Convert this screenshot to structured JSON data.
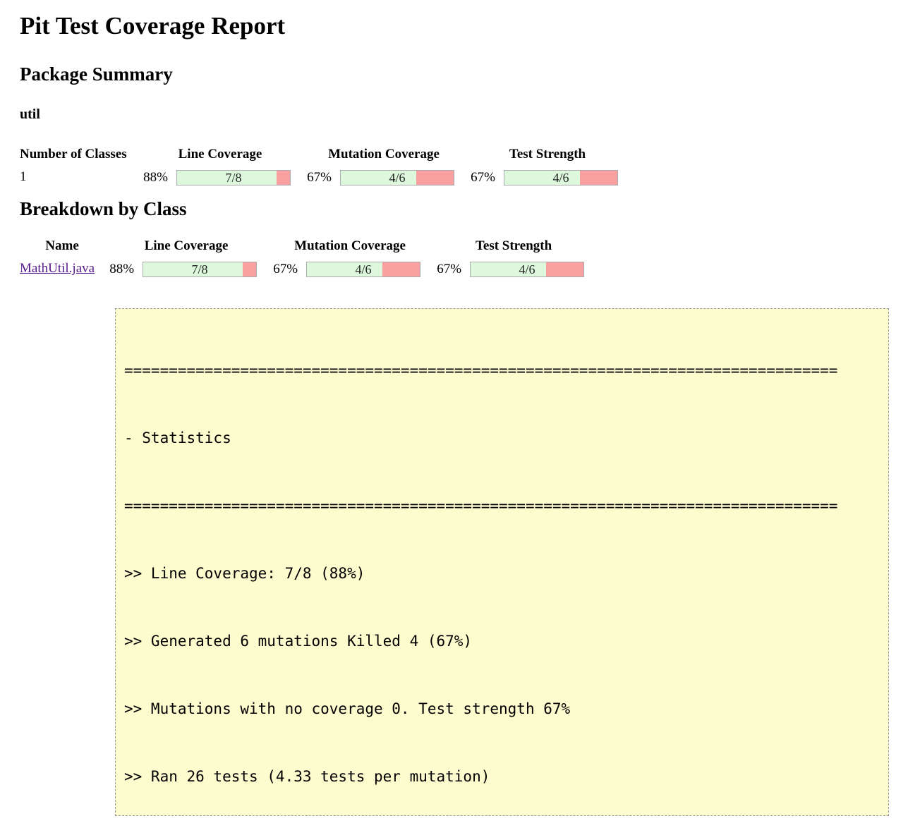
{
  "page": {
    "title": "Pit Test Coverage Report",
    "sections": {
      "package_summary": "Package Summary",
      "breakdown_by_class": "Breakdown by Class"
    },
    "package_name": "util"
  },
  "coverage": {
    "line": {
      "percent": "88%",
      "legend": "7/8",
      "width_pct": 88
    },
    "mutation": {
      "percent": "67%",
      "legend": "4/6",
      "width_pct": 67
    },
    "test_strength": {
      "percent": "67%",
      "legend": "4/6",
      "width_pct": 67
    }
  },
  "package_table": {
    "headers": [
      "Number of Classes",
      "Line Coverage",
      "Mutation Coverage",
      "Test Strength"
    ],
    "row": {
      "number_of_classes": "1"
    }
  },
  "class_table": {
    "headers": [
      "Name",
      "Line Coverage",
      "Mutation Coverage",
      "Test Strength"
    ],
    "row": {
      "name": "MathUtil.java"
    }
  },
  "console": {
    "lines": [
      "================================================================================",
      "- Statistics",
      "================================================================================",
      ">> Line Coverage: 7/8 (88%)",
      ">> Generated 6 mutations Killed 4 (67%)",
      ">> Mutations with no coverage 0. Test strength 67%",
      ">> Ran 26 tests (4.33 tests per mutation)"
    ]
  },
  "colors": {
    "bar_green": "#DDF8DD",
    "bar_red": "#F9A1A1",
    "bar_border": "#ABABAB",
    "console_bg": "#FDFCCE",
    "console_border": "#9B9B9B",
    "link_purple": "#551A8B"
  }
}
